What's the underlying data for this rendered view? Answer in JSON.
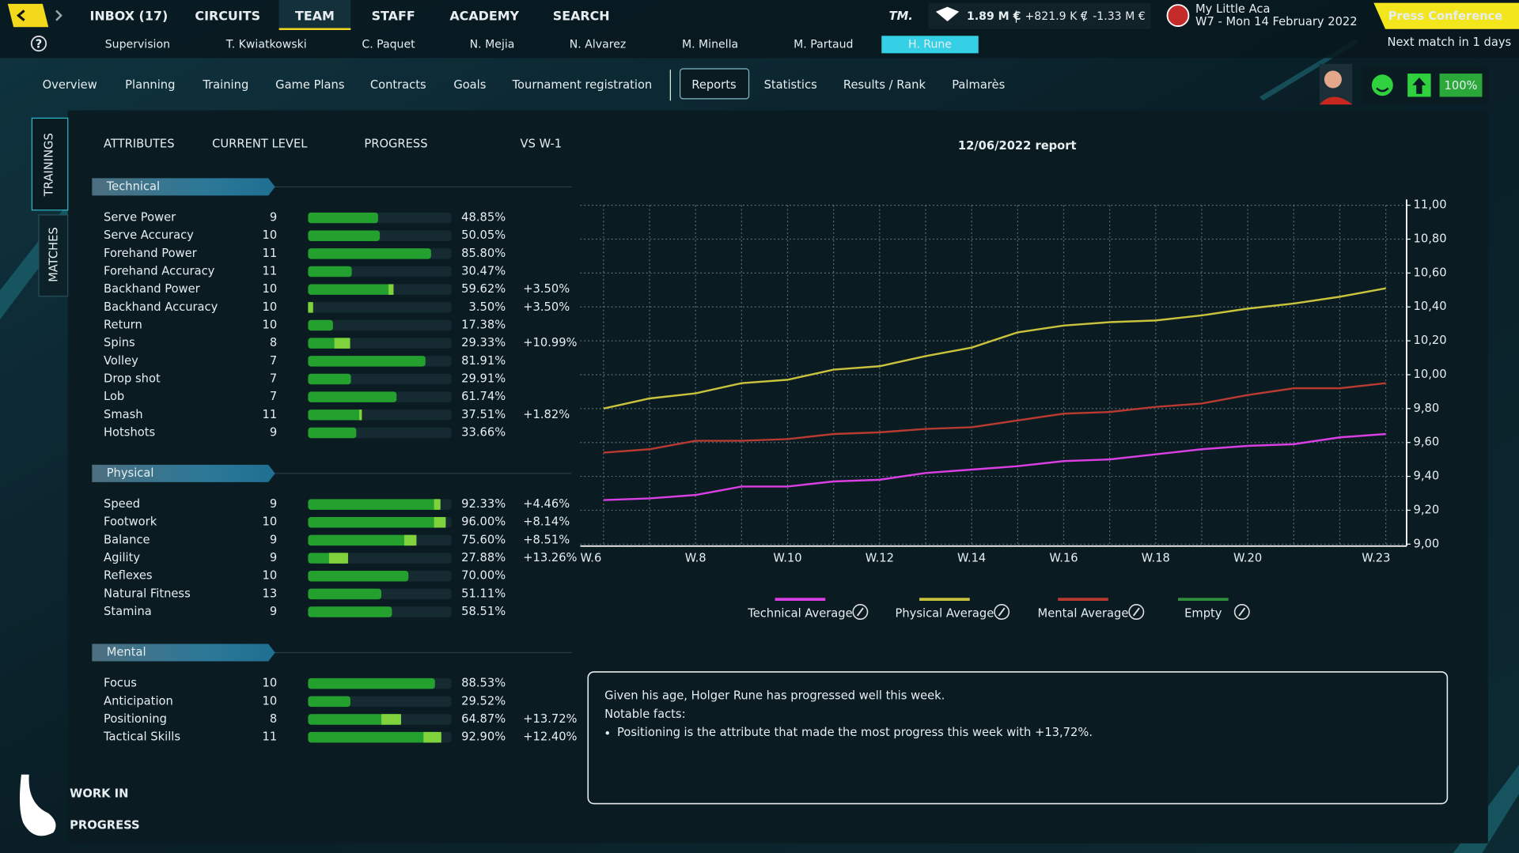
{
  "top_nav": [
    "INBOX (17)",
    "CIRCUITS",
    "TEAM",
    "STAFF",
    "ACADEMY",
    "SEARCH"
  ],
  "logo": "TM.",
  "finance": {
    "balance": "1.89 M €",
    "separators": [
      "|",
      "/"
    ],
    "income": "+821.9 K €",
    "expense": "-1.33 M €"
  },
  "club": {
    "name": "My Little Aca",
    "date": "W7 - Mon 14 February 2022"
  },
  "press_conference": "Press Conference",
  "next_match": "Next match in 1 days",
  "help": "?",
  "players": [
    "Supervision",
    "T. Kwiatkowski",
    "C. Paquet",
    "N. Mejia",
    "N. Alvarez",
    "M. Minella",
    "M. Partaud",
    "H. Rune"
  ],
  "tabs": [
    "Overview",
    "Planning",
    "Training",
    "Game Plans",
    "Contracts",
    "Goals",
    "Tournament registration",
    "Reports",
    "Statistics",
    "Results / Rank",
    "Palmarès"
  ],
  "morale": "100%",
  "side_tabs": [
    "TRAININGS",
    "MATCHES"
  ],
  "table_headers": [
    "ATTRIBUTES",
    "CURRENT LEVEL",
    "PROGRESS",
    "VS W-1"
  ],
  "groups": [
    {
      "name": "Technical",
      "rows": [
        {
          "name": "Serve Power",
          "level": 9,
          "progress": 48.85,
          "progress_label": "48.85%"
        },
        {
          "name": "Serve Accuracy",
          "level": 10,
          "progress": 50.05,
          "progress_label": "50.05%"
        },
        {
          "name": "Forehand Power",
          "level": 11,
          "progress": 85.8,
          "progress_label": "85.80%"
        },
        {
          "name": "Forehand Accuracy",
          "level": 11,
          "progress": 30.47,
          "progress_label": "30.47%"
        },
        {
          "name": "Backhand Power",
          "level": 10,
          "progress": 59.62,
          "progress_label": "59.62%",
          "delta": 3.5,
          "delta_label": "+3.50%"
        },
        {
          "name": "Backhand Accuracy",
          "level": 10,
          "progress": 3.5,
          "progress_label": "3.50%",
          "delta": 3.5,
          "delta_label": "+3.50%"
        },
        {
          "name": "Return",
          "level": 10,
          "progress": 17.38,
          "progress_label": "17.38%"
        },
        {
          "name": "Spins",
          "level": 8,
          "progress": 29.33,
          "progress_label": "29.33%",
          "delta": 10.99,
          "delta_label": "+10.99%"
        },
        {
          "name": "Volley",
          "level": 7,
          "progress": 81.91,
          "progress_label": "81.91%"
        },
        {
          "name": "Drop shot",
          "level": 7,
          "progress": 29.91,
          "progress_label": "29.91%"
        },
        {
          "name": "Lob",
          "level": 7,
          "progress": 61.74,
          "progress_label": "61.74%"
        },
        {
          "name": "Smash",
          "level": 11,
          "progress": 37.51,
          "progress_label": "37.51%",
          "delta": 1.82,
          "delta_label": "+1.82%"
        },
        {
          "name": "Hotshots",
          "level": 9,
          "progress": 33.66,
          "progress_label": "33.66%"
        }
      ]
    },
    {
      "name": "Physical",
      "rows": [
        {
          "name": "Speed",
          "level": 9,
          "progress": 92.33,
          "progress_label": "92.33%",
          "delta": 4.46,
          "delta_label": "+4.46%"
        },
        {
          "name": "Footwork",
          "level": 10,
          "progress": 96.0,
          "progress_label": "96.00%",
          "delta": 8.14,
          "delta_label": "+8.14%"
        },
        {
          "name": "Balance",
          "level": 9,
          "progress": 75.6,
          "progress_label": "75.60%",
          "delta": 8.51,
          "delta_label": "+8.51%"
        },
        {
          "name": "Agility",
          "level": 9,
          "progress": 27.88,
          "progress_label": "27.88%",
          "delta": 13.26,
          "delta_label": "+13.26%"
        },
        {
          "name": "Reflexes",
          "level": 10,
          "progress": 70.0,
          "progress_label": "70.00%"
        },
        {
          "name": "Natural Fitness",
          "level": 13,
          "progress": 51.11,
          "progress_label": "51.11%",
          "highlight": true
        },
        {
          "name": "Stamina",
          "level": 9,
          "progress": 58.51,
          "progress_label": "58.51%"
        }
      ]
    },
    {
      "name": "Mental",
      "rows": [
        {
          "name": "Focus",
          "level": 10,
          "progress": 88.53,
          "progress_label": "88.53%"
        },
        {
          "name": "Anticipation",
          "level": 10,
          "progress": 29.52,
          "progress_label": "29.52%"
        },
        {
          "name": "Positioning",
          "level": 8,
          "progress": 64.87,
          "progress_label": "64.87%",
          "delta": 13.72,
          "delta_label": "+13.72%"
        },
        {
          "name": "Tactical Skills",
          "level": 11,
          "progress": 92.9,
          "progress_label": "92.90%",
          "delta": 12.4,
          "delta_label": "+12.40%"
        }
      ]
    }
  ],
  "chart_data": {
    "type": "line",
    "title": "12/06/2022 report",
    "categories": [
      "W.6",
      null,
      "W.8",
      null,
      "W.10",
      null,
      "W.12",
      null,
      "W.14",
      null,
      "W.16",
      null,
      "W.18",
      null,
      "W.20",
      null,
      null,
      "W.23"
    ],
    "series": [
      {
        "name": "Technical Average",
        "color": "#d93fe3",
        "values": [
          9.26,
          9.27,
          9.29,
          9.34,
          9.34,
          9.37,
          9.38,
          9.42,
          9.44,
          9.46,
          9.49,
          9.5,
          9.53,
          9.56,
          9.58,
          9.59,
          9.63,
          9.65
        ]
      },
      {
        "name": "Physical Average",
        "color": "#c8c23c",
        "values": [
          9.8,
          9.86,
          9.89,
          9.95,
          9.97,
          10.03,
          10.05,
          10.11,
          10.16,
          10.25,
          10.29,
          10.31,
          10.32,
          10.35,
          10.39,
          10.42,
          10.46,
          10.51
        ]
      },
      {
        "name": "Mental Average",
        "color": "#b83a30",
        "values": [
          9.54,
          9.56,
          9.61,
          9.61,
          9.62,
          9.65,
          9.66,
          9.68,
          9.69,
          9.73,
          9.77,
          9.78,
          9.81,
          9.83,
          9.88,
          9.92,
          9.92,
          9.95
        ]
      },
      {
        "name": "Empty",
        "color": "#2f8e3c",
        "values": [
          null,
          null,
          null,
          null,
          null,
          null,
          null,
          null,
          null,
          null,
          null,
          null,
          null,
          null,
          null,
          null,
          null,
          null
        ]
      }
    ],
    "ylim": [
      9,
      11
    ],
    "yticks": [
      {
        "value": 9,
        "label": "9,00"
      },
      {
        "value": 9.2,
        "label": "9,20"
      },
      {
        "value": 9.4,
        "label": "9,40"
      },
      {
        "value": 9.6,
        "label": "9,60"
      },
      {
        "value": 9.8,
        "label": "9,80"
      },
      {
        "value": 10,
        "label": "10,00"
      },
      {
        "value": 10.2,
        "label": "10,20"
      },
      {
        "value": 10.4,
        "label": "10,40"
      },
      {
        "value": 10.6,
        "label": "10,60"
      },
      {
        "value": 10.8,
        "label": "10,80"
      },
      {
        "value": 11,
        "label": "11,00"
      }
    ],
    "grid": true,
    "y_axis_side": "right",
    "legend": "bottom"
  },
  "report": {
    "lines": [
      "Given his age, Holger Rune has progressed well this week.",
      "Notable facts:"
    ],
    "bullets": [
      "Positioning is the attribute that made the most progress this week with +13,72%."
    ]
  },
  "watermark": [
    "WORK IN",
    "PROGRESS"
  ]
}
